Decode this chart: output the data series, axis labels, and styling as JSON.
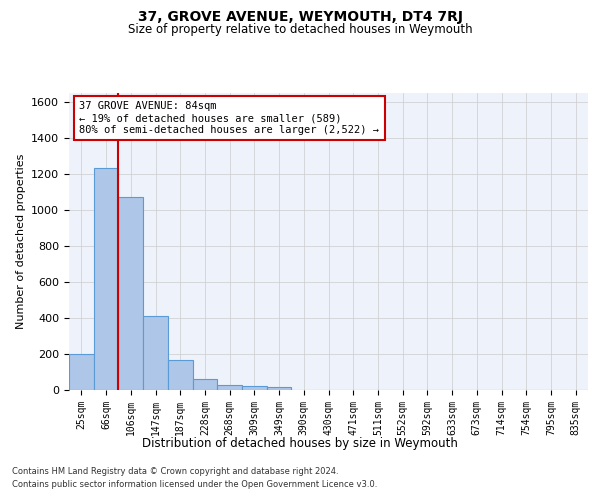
{
  "title": "37, GROVE AVENUE, WEYMOUTH, DT4 7RJ",
  "subtitle": "Size of property relative to detached houses in Weymouth",
  "xlabel": "Distribution of detached houses by size in Weymouth",
  "ylabel": "Number of detached properties",
  "bar_labels": [
    "25sqm",
    "66sqm",
    "106sqm",
    "147sqm",
    "187sqm",
    "228sqm",
    "268sqm",
    "309sqm",
    "349sqm",
    "390sqm",
    "430sqm",
    "471sqm",
    "511sqm",
    "552sqm",
    "592sqm",
    "633sqm",
    "673sqm",
    "714sqm",
    "754sqm",
    "795sqm",
    "835sqm"
  ],
  "bar_values": [
    200,
    1230,
    1070,
    410,
    165,
    60,
    30,
    20,
    15,
    0,
    0,
    0,
    0,
    0,
    0,
    0,
    0,
    0,
    0,
    0,
    0
  ],
  "bar_color": "#aec6e8",
  "bar_edge_color": "#5b9bd5",
  "annotation_text": "37 GROVE AVENUE: 84sqm\n← 19% of detached houses are smaller (589)\n80% of semi-detached houses are larger (2,522) →",
  "annotation_box_color": "#ffffff",
  "annotation_box_edge": "#cc0000",
  "vline_color": "#cc0000",
  "ylim": [
    0,
    1650
  ],
  "yticks": [
    0,
    200,
    400,
    600,
    800,
    1000,
    1200,
    1400,
    1600
  ],
  "grid_color": "#cccccc",
  "bg_color": "#eef2fb",
  "footer_line1": "Contains HM Land Registry data © Crown copyright and database right 2024.",
  "footer_line2": "Contains public sector information licensed under the Open Government Licence v3.0."
}
